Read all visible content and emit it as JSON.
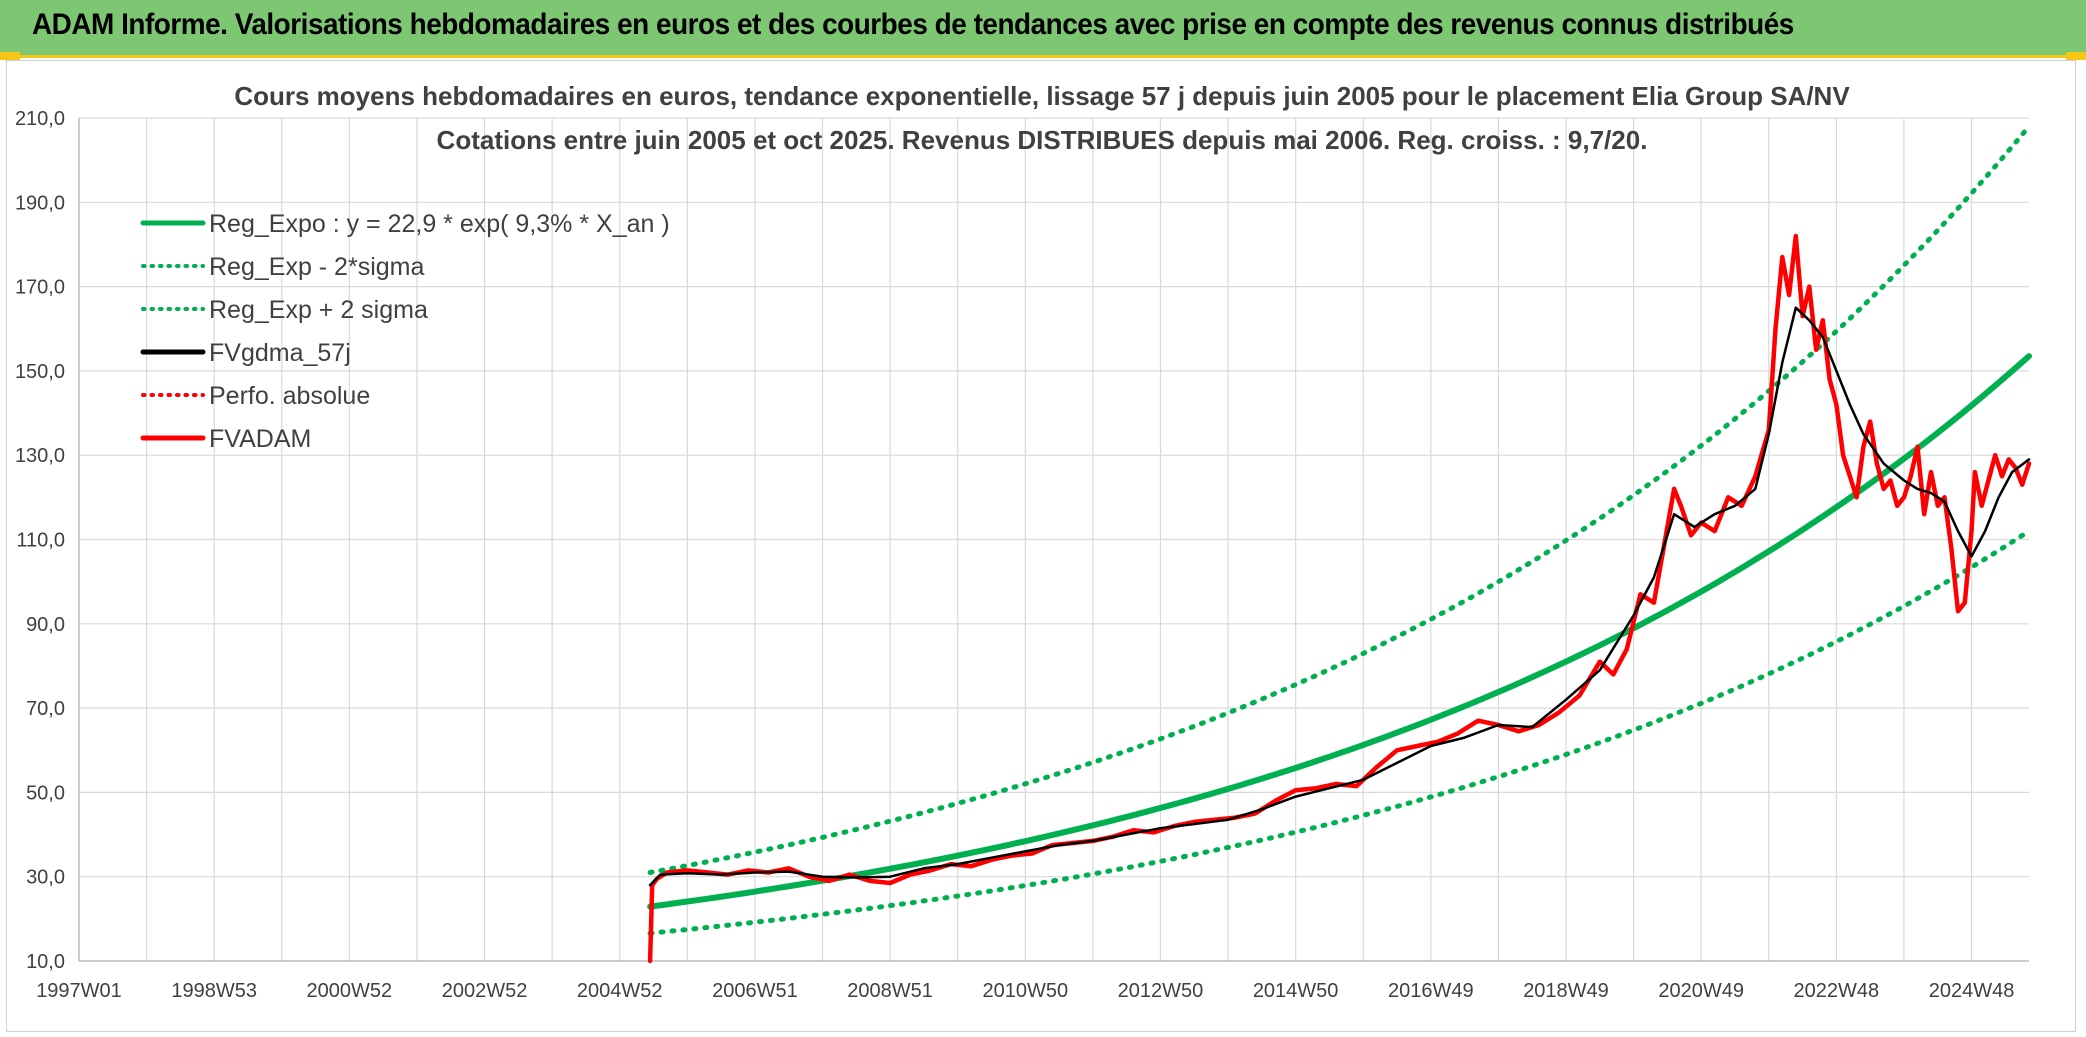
{
  "header": {
    "title": "ADAM Informe. Valorisations hebdomadaires en euros et des courbes de tendances avec prise en compte des revenus connus distribués"
  },
  "colors": {
    "header_bg": "#7dc672",
    "accent_yellow": "#f5c518",
    "reg": "#00b050",
    "fvadam": "#ff0000",
    "fvgdma": "#000000",
    "perfo": "#ff0000"
  },
  "chart_data": {
    "type": "line",
    "title": "Cours moyens hebdomadaires en euros, tendance exponentielle, lissage 57 j depuis juin 2005 pour le placement Elia Group SA/NV",
    "subtitle": "Cotations entre juin 2005 et oct 2025. Revenus DISTRIBUES depuis mai 2006. Reg. croiss. : 9,7/20.",
    "xlabel": "",
    "ylabel": "",
    "x_ticks": [
      "1997W01",
      "1998W53",
      "2000W52",
      "2002W52",
      "2004W52",
      "2006W51",
      "2008W51",
      "2010W50",
      "2012W50",
      "2014W50",
      "2016W49",
      "2018W49",
      "2020W49",
      "2022W48",
      "2024W48"
    ],
    "x_tick_years": [
      1997.0,
      1999.0,
      2001.0,
      2003.0,
      2005.0,
      2007.0,
      2009.0,
      2011.0,
      2013.0,
      2015.0,
      2017.0,
      2019.0,
      2021.0,
      2023.0,
      2025.0
    ],
    "y_ticks": [
      "10,0",
      "30,0",
      "50,0",
      "70,0",
      "90,0",
      "110,0",
      "130,0",
      "150,0",
      "170,0",
      "190,0",
      "210,0"
    ],
    "xlim": [
      1997.0,
      2025.85
    ],
    "ylim": [
      10,
      210
    ],
    "grid": true,
    "legend_position": "top-left",
    "legend": [
      {
        "label": "Reg_Expo : y = 22,9 * exp( 9,3% *  X_an )",
        "style": "solid",
        "color": "#00b050"
      },
      {
        "label": "Reg_Exp - 2*sigma",
        "style": "dotted",
        "color": "#00b050"
      },
      {
        "label": "Reg_Exp + 2 sigma",
        "style": "dotted",
        "color": "#00b050"
      },
      {
        "label": "FVgdma_57j",
        "style": "solid",
        "color": "#000000"
      },
      {
        "label": "Perfo. absolue",
        "style": "dotted",
        "color": "#ff0000"
      },
      {
        "label": "FVADAM",
        "style": "solid",
        "color": "#ff0000"
      }
    ],
    "series": [
      {
        "name": "Reg_Expo : y = 22,9 * exp( 9,3% *  X_an )",
        "x": [
          2005.45,
          2007.0,
          2009.0,
          2011.0,
          2013.0,
          2015.0,
          2017.0,
          2019.0,
          2021.0,
          2023.0,
          2025.0,
          2025.85
        ],
        "values": [
          22.9,
          26.5,
          32.0,
          38.5,
          46.5,
          56.0,
          67.5,
          81.5,
          98.0,
          118.0,
          142.5,
          153.5
        ]
      },
      {
        "name": "Reg_Exp - 2*sigma",
        "x": [
          2005.45,
          2007.0,
          2009.0,
          2011.0,
          2013.0,
          2015.0,
          2017.0,
          2019.0,
          2021.0,
          2023.0,
          2025.0,
          2025.85
        ],
        "values": [
          16.6,
          19.3,
          23.3,
          28.0,
          33.8,
          40.7,
          49.1,
          59.2,
          71.3,
          85.9,
          103.5,
          112.0
        ]
      },
      {
        "name": "Reg_Exp + 2 sigma",
        "x": [
          2005.45,
          2007.0,
          2009.0,
          2011.0,
          2013.0,
          2015.0,
          2017.0,
          2019.0,
          2021.0,
          2023.0,
          2025.0,
          2025.85
        ],
        "values": [
          31.0,
          36.1,
          43.4,
          52.3,
          63.0,
          75.9,
          91.5,
          110.2,
          132.8,
          160.1,
          192.8,
          208.0
        ]
      },
      {
        "name": "FVgdma_57j",
        "x": [
          2005.45,
          2005.6,
          2006.0,
          2006.5,
          2007.0,
          2007.5,
          2008.0,
          2008.5,
          2009.0,
          2009.5,
          2010.0,
          2010.5,
          2011.0,
          2011.5,
          2012.0,
          2012.5,
          2013.0,
          2013.5,
          2014.0,
          2014.5,
          2015.0,
          2015.5,
          2016.0,
          2016.5,
          2017.0,
          2017.5,
          2018.0,
          2018.5,
          2019.0,
          2019.5,
          2020.0,
          2020.3,
          2020.6,
          2020.9,
          2021.2,
          2021.5,
          2021.8,
          2022.0,
          2022.2,
          2022.4,
          2022.6,
          2022.8,
          2023.0,
          2023.2,
          2023.4,
          2023.7,
          2024.0,
          2024.2,
          2024.4,
          2024.6,
          2024.8,
          2025.0,
          2025.2,
          2025.4,
          2025.6,
          2025.85
        ],
        "values": [
          28.0,
          30.5,
          30.8,
          30.5,
          31.0,
          31.2,
          30.0,
          29.8,
          30.0,
          32.0,
          33.0,
          34.5,
          36.0,
          37.5,
          38.5,
          40.0,
          41.5,
          42.5,
          43.5,
          46.0,
          49.0,
          51.0,
          53.0,
          57.0,
          61.0,
          63.0,
          66.0,
          65.5,
          72.0,
          79.0,
          92.0,
          101.0,
          116.0,
          113.0,
          116.0,
          118.0,
          122.0,
          135.0,
          152.0,
          165.0,
          162.0,
          158.0,
          150.0,
          142.0,
          135.0,
          128.0,
          124.0,
          122.0,
          121.0,
          119.0,
          112.0,
          106.0,
          112.0,
          120.0,
          126.0,
          129.0
        ]
      },
      {
        "name": "FVADAM",
        "x": [
          2005.45,
          2005.48,
          2005.55,
          2005.7,
          2006.0,
          2006.3,
          2006.6,
          2006.9,
          2007.2,
          2007.5,
          2007.8,
          2008.1,
          2008.4,
          2008.7,
          2009.0,
          2009.3,
          2009.6,
          2009.9,
          2010.2,
          2010.5,
          2010.8,
          2011.1,
          2011.4,
          2011.7,
          2012.0,
          2012.3,
          2012.6,
          2012.9,
          2013.2,
          2013.5,
          2013.8,
          2014.1,
          2014.4,
          2014.7,
          2015.0,
          2015.3,
          2015.6,
          2015.9,
          2016.2,
          2016.5,
          2016.8,
          2017.1,
          2017.4,
          2017.7,
          2018.0,
          2018.3,
          2018.6,
          2018.9,
          2019.2,
          2019.5,
          2019.7,
          2019.9,
          2020.1,
          2020.3,
          2020.5,
          2020.6,
          2020.7,
          2020.85,
          2021.0,
          2021.2,
          2021.4,
          2021.6,
          2021.8,
          2022.0,
          2022.1,
          2022.2,
          2022.3,
          2022.4,
          2022.5,
          2022.6,
          2022.7,
          2022.8,
          2022.9,
          2023.0,
          2023.1,
          2023.2,
          2023.3,
          2023.4,
          2023.5,
          2023.6,
          2023.7,
          2023.8,
          2023.9,
          2024.0,
          2024.1,
          2024.2,
          2024.3,
          2024.4,
          2024.5,
          2024.6,
          2024.7,
          2024.8,
          2024.9,
          2025.0,
          2025.05,
          2025.15,
          2025.25,
          2025.35,
          2025.45,
          2025.55,
          2025.65,
          2025.75,
          2025.85
        ],
        "values": [
          10.0,
          28.0,
          29.5,
          31.0,
          31.5,
          31.0,
          30.5,
          31.5,
          31.0,
          32.0,
          30.0,
          29.0,
          30.5,
          29.0,
          28.5,
          30.5,
          31.5,
          33.0,
          32.5,
          34.0,
          35.0,
          35.5,
          37.5,
          38.0,
          38.5,
          39.5,
          41.0,
          40.5,
          42.0,
          43.0,
          43.5,
          44.0,
          45.0,
          48.0,
          50.5,
          51.0,
          52.0,
          51.5,
          56.0,
          60.0,
          61.0,
          62.0,
          64.0,
          67.0,
          66.0,
          64.5,
          66.0,
          69.0,
          73.0,
          81.0,
          78.0,
          84.0,
          97.0,
          95.0,
          113.0,
          122.0,
          118.0,
          111.0,
          114.0,
          112.0,
          120.0,
          118.0,
          125.0,
          136.0,
          160.0,
          177.0,
          168.0,
          182.0,
          163.0,
          170.0,
          155.0,
          162.0,
          148.0,
          142.0,
          130.0,
          125.0,
          120.0,
          132.0,
          138.0,
          128.0,
          122.0,
          124.0,
          118.0,
          120.0,
          125.0,
          132.0,
          116.0,
          126.0,
          118.0,
          120.0,
          108.0,
          93.0,
          95.0,
          112.0,
          126.0,
          118.0,
          124.0,
          130.0,
          125.0,
          129.0,
          127.0,
          123.0,
          128.0
        ]
      }
    ]
  }
}
